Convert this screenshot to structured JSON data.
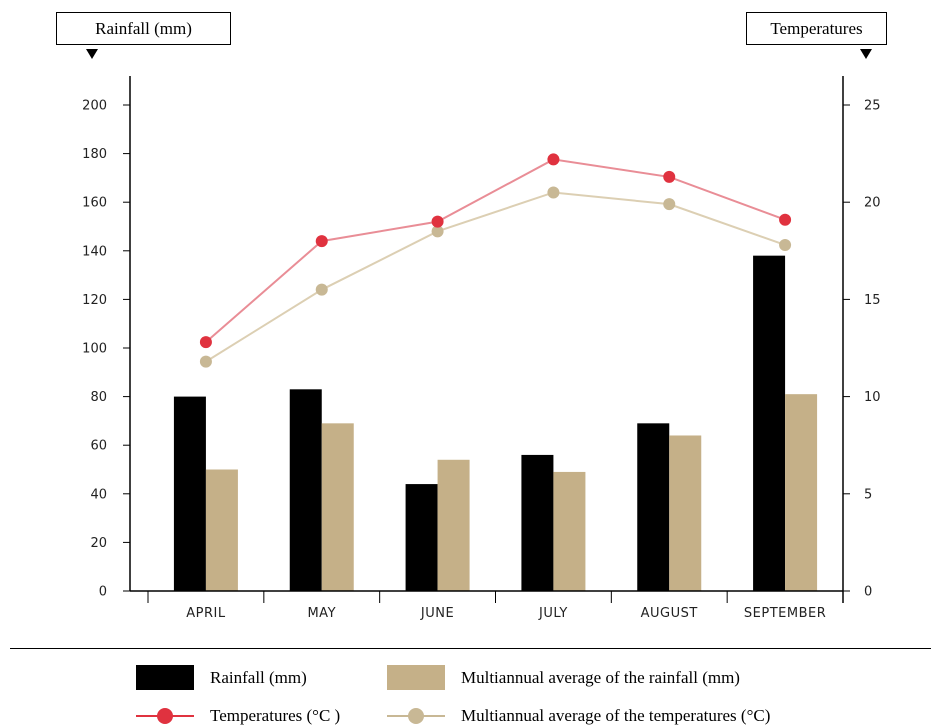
{
  "colors": {
    "rainfall": "#000000",
    "rainfall_avg": "#c5b088",
    "temperature": "#e0323f",
    "temperature_avg": "#c8b895",
    "temperature_line": "#e98d96",
    "temperature_avg_line": "#dccfb3",
    "axis": "#000000"
  },
  "axes": {
    "left_label": "Rainfall (mm)",
    "right_label": "Temperatures"
  },
  "legend": {
    "rainfall": "Rainfall (mm)",
    "rainfall_avg": "Multiannual average of the rainfall (mm)",
    "temperature": "Temperatures (°C )",
    "temperature_avg": "Multiannual average of the temperatures (°C)"
  },
  "chart_data": {
    "type": "bar",
    "categories": [
      "APRIL",
      "MAY",
      "JUNE",
      "JULY",
      "AUGUST",
      "SEPTEMBER"
    ],
    "y_left": {
      "label": "Rainfall (mm)",
      "ylim": [
        0,
        200
      ],
      "ticks": [
        0,
        20,
        40,
        60,
        80,
        100,
        120,
        140,
        160,
        180,
        200
      ]
    },
    "y_right": {
      "label": "Temperatures",
      "ylim": [
        0,
        25
      ],
      "ticks": [
        0,
        5,
        10,
        15,
        20,
        25
      ]
    },
    "series": [
      {
        "name": "Rainfall (mm)",
        "kind": "bar",
        "axis": "left",
        "values": [
          80,
          83,
          44,
          56,
          69,
          138
        ]
      },
      {
        "name": "Multiannual average of the rainfall (mm)",
        "kind": "bar",
        "axis": "left",
        "values": [
          50,
          69,
          54,
          49,
          64,
          81
        ]
      },
      {
        "name": "Temperatures (°C )",
        "kind": "line",
        "axis": "right",
        "values": [
          12.8,
          18.0,
          19.0,
          22.2,
          21.3,
          19.1
        ]
      },
      {
        "name": "Multiannual average of the temperatures (°C)",
        "kind": "line",
        "axis": "right",
        "values": [
          11.8,
          15.5,
          18.5,
          20.5,
          19.9,
          17.8
        ]
      }
    ],
    "grid": false,
    "legend_position": "bottom"
  }
}
